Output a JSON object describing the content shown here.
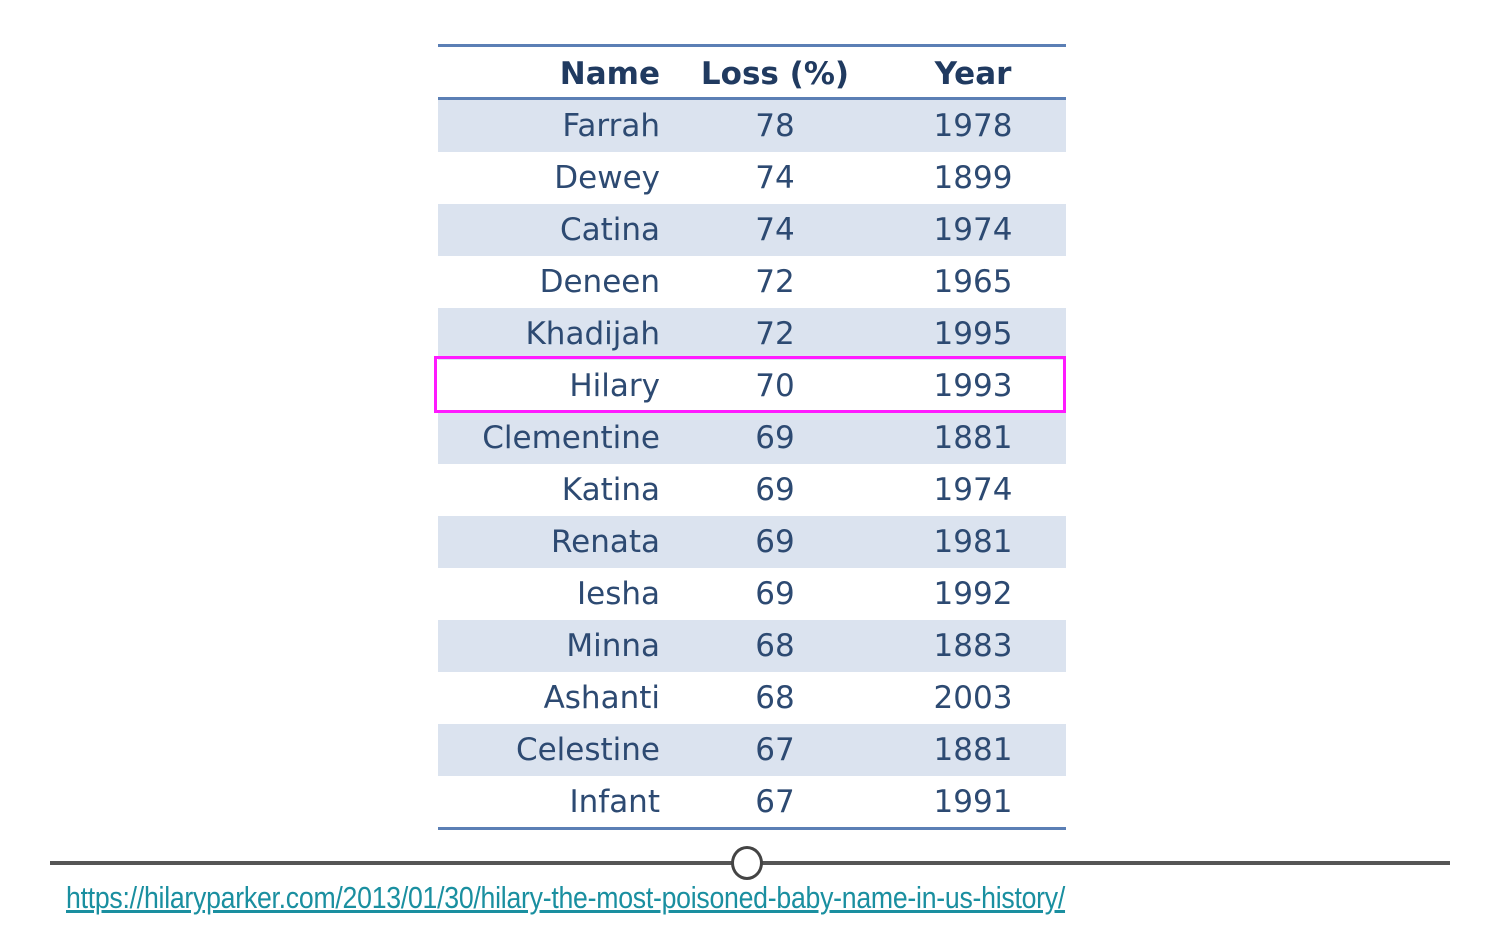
{
  "table": {
    "headers": {
      "name": "Name",
      "loss": "Loss (%)",
      "year": "Year"
    },
    "rows": [
      {
        "name": "Farrah",
        "loss": "78",
        "year": "1978"
      },
      {
        "name": "Dewey",
        "loss": "74",
        "year": "1899"
      },
      {
        "name": "Catina",
        "loss": "74",
        "year": "1974"
      },
      {
        "name": "Deneen",
        "loss": "72",
        "year": "1965"
      },
      {
        "name": "Khadijah",
        "loss": "72",
        "year": "1995"
      },
      {
        "name": "Hilary",
        "loss": "70",
        "year": "1993"
      },
      {
        "name": "Clementine",
        "loss": "69",
        "year": "1881"
      },
      {
        "name": "Katina",
        "loss": "69",
        "year": "1974"
      },
      {
        "name": "Renata",
        "loss": "69",
        "year": "1981"
      },
      {
        "name": "Iesha",
        "loss": "69",
        "year": "1992"
      },
      {
        "name": "Minna",
        "loss": "68",
        "year": "1883"
      },
      {
        "name": "Ashanti",
        "loss": "68",
        "year": "2003"
      },
      {
        "name": "Celestine",
        "loss": "67",
        "year": "1881"
      },
      {
        "name": "Infant",
        "loss": "67",
        "year": "1991"
      }
    ],
    "highlighted_row": "Hilary"
  },
  "source_link": "https://hilaryparker.com/2013/01/30/hilary-the-most-poisoned-baby-name-in-us-history/",
  "colors": {
    "rule": "#5b7fb5",
    "shade": "#dbe3ef",
    "text": "#2d4a72",
    "highlight": "#ff1aff",
    "link": "#1a8fa0",
    "timeline": "#555555"
  }
}
